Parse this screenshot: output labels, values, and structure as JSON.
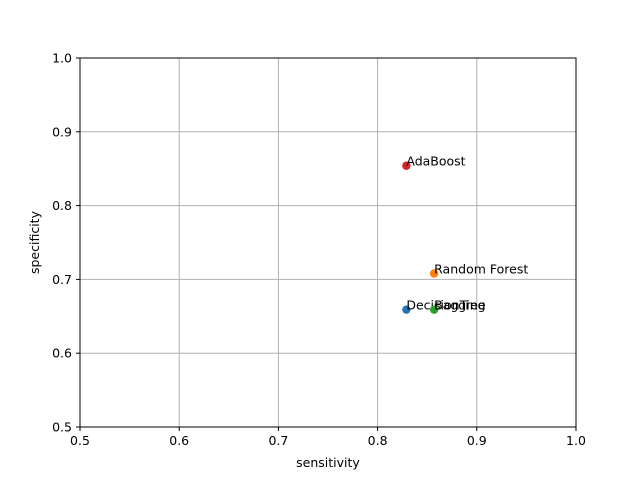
{
  "chart_data": {
    "type": "scatter",
    "title": "",
    "xlabel": "sensitivity",
    "ylabel": "specificity",
    "xlim": [
      0.5,
      1.0
    ],
    "ylim": [
      0.5,
      1.0
    ],
    "x_ticks": [
      0.5,
      0.6,
      0.7,
      0.8,
      0.9,
      1.0
    ],
    "y_ticks": [
      0.5,
      0.6,
      0.7,
      0.8,
      0.9,
      1.0
    ],
    "x_tick_labels": [
      "0.5",
      "0.6",
      "0.7",
      "0.8",
      "0.9",
      "1.0"
    ],
    "y_tick_labels": [
      "0.5",
      "0.6",
      "0.7",
      "0.8",
      "0.9",
      "1.0"
    ],
    "grid": true,
    "legend": "none",
    "points": [
      {
        "label": "DecisionTree",
        "x": 0.829,
        "y": 0.659,
        "color": "#1f77b4"
      },
      {
        "label": "Random Forest",
        "x": 0.857,
        "y": 0.708,
        "color": "#ff7f0e"
      },
      {
        "label": "Bagging",
        "x": 0.857,
        "y": 0.659,
        "color": "#2ca02c"
      },
      {
        "label": "AdaBoost",
        "x": 0.829,
        "y": 0.854,
        "color": "#d62728"
      }
    ]
  }
}
